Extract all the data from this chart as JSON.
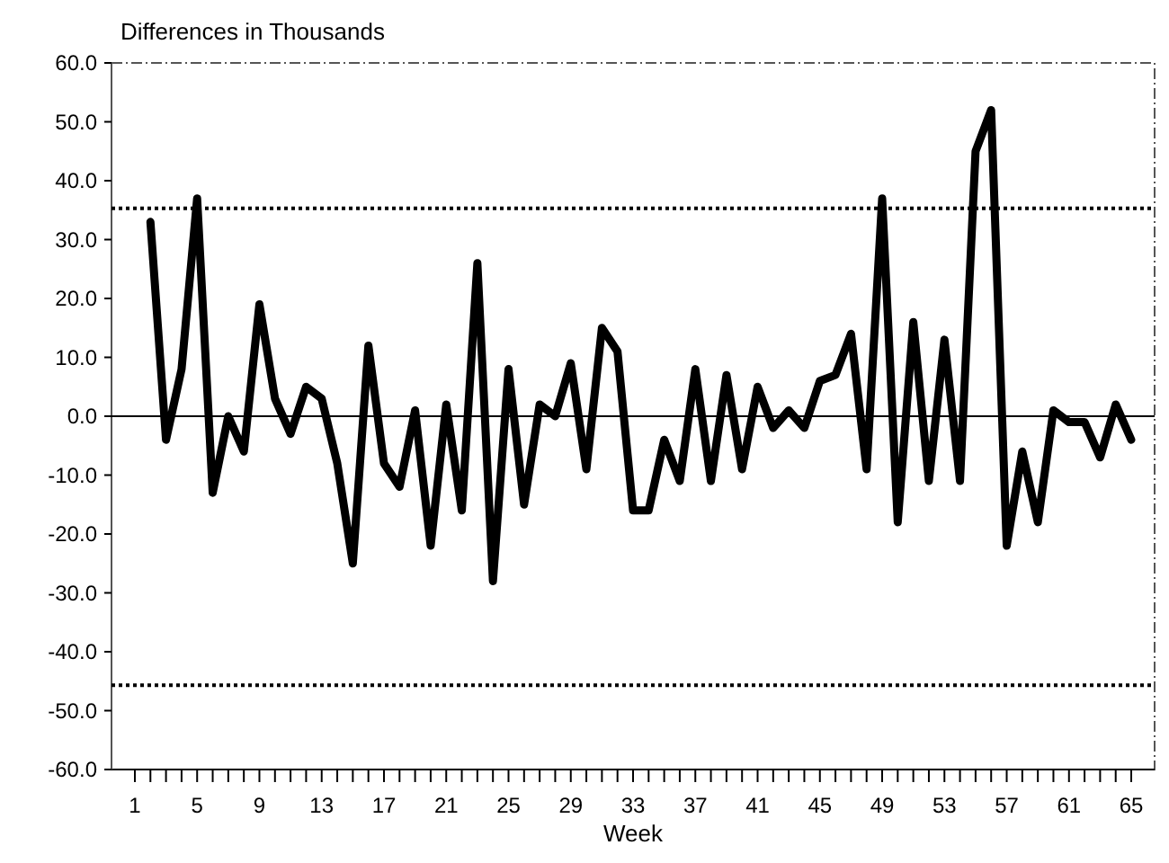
{
  "chart_data": {
    "type": "line",
    "title": "Differences in Thousands",
    "xlabel": "Week",
    "x": [
      2,
      3,
      4,
      5,
      6,
      7,
      8,
      9,
      10,
      11,
      12,
      13,
      14,
      15,
      16,
      17,
      18,
      19,
      20,
      21,
      22,
      23,
      24,
      25,
      26,
      27,
      28,
      29,
      30,
      31,
      32,
      33,
      34,
      35,
      36,
      37,
      38,
      39,
      40,
      41,
      42,
      43,
      44,
      45,
      46,
      47,
      48,
      49,
      50,
      51,
      52,
      53,
      54,
      55,
      56,
      57,
      58,
      59,
      60,
      61,
      62,
      63,
      64,
      65
    ],
    "series": [
      {
        "color": "#000000",
        "values": [
          33,
          -4,
          8,
          37,
          -13,
          0,
          -6,
          19,
          3,
          -3,
          5,
          3,
          -8,
          -25,
          12,
          -8,
          -12,
          1,
          -22,
          2,
          -16,
          26,
          -28,
          8,
          -15,
          2,
          0,
          9,
          -9,
          15,
          11,
          -16,
          -16,
          -4,
          -11,
          8,
          -11,
          7,
          -9,
          5,
          -2,
          1,
          -2,
          6,
          7,
          14,
          -9,
          37,
          -18,
          16,
          -11,
          13,
          -11,
          45,
          52,
          -22,
          -6,
          -18,
          1,
          -1,
          -1,
          -7,
          2,
          -4
        ]
      }
    ],
    "xlim": [
      -0.5,
      66.5
    ],
    "xticks": [
      1,
      {
        "value": 2,
        "label": null
      },
      {
        "value": 3,
        "label": null
      },
      {
        "value": 4,
        "label": null
      },
      5,
      {
        "value": 6,
        "label": null
      },
      {
        "value": 7,
        "label": null
      },
      {
        "value": 8,
        "label": null
      },
      9,
      {
        "value": 10,
        "label": null
      },
      {
        "value": 11,
        "label": null
      },
      {
        "value": 12,
        "label": null
      },
      13,
      {
        "value": 14,
        "label": null
      },
      {
        "value": 15,
        "label": null
      },
      {
        "value": 16,
        "label": null
      },
      17,
      {
        "value": 18,
        "label": null
      },
      {
        "value": 19,
        "label": null
      },
      {
        "value": 20,
        "label": null
      },
      21,
      {
        "value": 22,
        "label": null
      },
      {
        "value": 23,
        "label": null
      },
      {
        "value": 24,
        "label": null
      },
      25,
      {
        "value": 26,
        "label": null
      },
      {
        "value": 27,
        "label": null
      },
      {
        "value": 28,
        "label": null
      },
      29,
      {
        "value": 30,
        "label": null
      },
      {
        "value": 31,
        "label": null
      },
      {
        "value": 32,
        "label": null
      },
      33,
      {
        "value": 34,
        "label": null
      },
      {
        "value": 35,
        "label": null
      },
      {
        "value": 36,
        "label": null
      },
      37,
      {
        "value": 38,
        "label": null
      },
      {
        "value": 39,
        "label": null
      },
      {
        "value": 40,
        "label": null
      },
      41,
      {
        "value": 42,
        "label": null
      },
      {
        "value": 43,
        "label": null
      },
      {
        "value": 44,
        "label": null
      },
      45,
      {
        "value": 46,
        "label": null
      },
      {
        "value": 47,
        "label": null
      },
      {
        "value": 48,
        "label": null
      },
      49,
      {
        "value": 50,
        "label": null
      },
      {
        "value": 51,
        "label": null
      },
      {
        "value": 52,
        "label": null
      },
      53,
      {
        "value": 54,
        "label": null
      },
      {
        "value": 55,
        "label": null
      },
      {
        "value": 56,
        "label": null
      },
      57,
      {
        "value": 58,
        "label": null
      },
      {
        "value": 59,
        "label": null
      },
      {
        "value": 60,
        "label": null
      },
      61,
      {
        "value": 62,
        "label": null
      },
      {
        "value": 63,
        "label": null
      },
      {
        "value": 64,
        "label": null
      },
      65
    ],
    "ylim": [
      -60,
      60
    ],
    "yticks": [
      {
        "value": -60,
        "label": "-60.0"
      },
      {
        "value": -50,
        "label": "-50.0"
      },
      {
        "value": -40,
        "label": "-40.0"
      },
      {
        "value": -30,
        "label": "-30.0"
      },
      {
        "value": -20,
        "label": "-20.0"
      },
      {
        "value": -10,
        "label": "-10.0"
      },
      {
        "value": 0,
        "label": "0.0"
      },
      {
        "value": 10,
        "label": "10.0"
      },
      {
        "value": 20,
        "label": "20.0"
      },
      {
        "value": 30,
        "label": "30.0"
      },
      {
        "value": 40,
        "label": "40.0"
      },
      {
        "value": 50,
        "label": "50.0"
      },
      {
        "value": 60,
        "label": "60.0"
      }
    ],
    "ref_lines": [
      {
        "axis": "y",
        "value": 0,
        "color": "#000000",
        "line_style": "solid"
      },
      {
        "axis": "y",
        "value": 35.3,
        "color": "#000000",
        "line_style": "dotted"
      },
      {
        "axis": "y",
        "value": -45.7,
        "color": "#000000",
        "line_style": "dotted"
      }
    ],
    "marker": "none",
    "line_style": "solid"
  }
}
